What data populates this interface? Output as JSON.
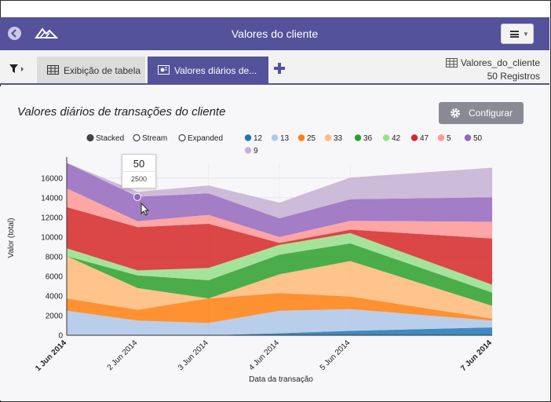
{
  "header": {
    "title": "Valores do cliente",
    "icons": [
      "back-arrow-icon",
      "mountain-logo-icon",
      "hamburger-menu-icon"
    ]
  },
  "tabs": [
    {
      "label": "Exibição de tabela",
      "icon": "table-icon",
      "active": false
    },
    {
      "label": "Valores diários de...",
      "icon": "chart-icon",
      "active": true
    }
  ],
  "source": {
    "name": "Valores_do_cliente",
    "records": "50 Registros"
  },
  "chart_title": "Valores diários de transações do cliente",
  "configure_label": "Configurar",
  "modes": [
    {
      "label": "Stacked",
      "selected": true
    },
    {
      "label": "Stream",
      "selected": false
    },
    {
      "label": "Expanded",
      "selected": false
    }
  ],
  "tooltip": {
    "series": "50",
    "value": "2500"
  },
  "colors": {
    "header": "#53529b",
    "accent": "#53529b"
  },
  "chart_data": {
    "type": "area",
    "stacked": true,
    "xlabel": "Data da transação",
    "ylabel": "Valor (total)",
    "ylim": [
      0,
      17500
    ],
    "yticks": [
      "0",
      "2000",
      "4000",
      "6000",
      "8000",
      "10000",
      "12000",
      "14000",
      "16000"
    ],
    "categories": [
      "1 Jun 2014",
      "2 Jun 2014",
      "3 Jun 2014",
      "4 Jun 2014",
      "5 Jun 2014",
      "7 Jun 2014"
    ],
    "category_emphasis": [
      true,
      false,
      false,
      false,
      false,
      true
    ],
    "x_positions_days": [
      0,
      1,
      2,
      3,
      4,
      6
    ],
    "series": [
      {
        "name": "12",
        "color": "#1f77b4",
        "values": [
          0,
          0,
          0,
          200,
          450,
          800
        ]
      },
      {
        "name": "13",
        "color": "#aec7e8",
        "values": [
          2500,
          1500,
          1250,
          2300,
          2200,
          700
        ]
      },
      {
        "name": "25",
        "color": "#ff7f0e",
        "values": [
          1250,
          1100,
          2500,
          1800,
          1300,
          200
        ]
      },
      {
        "name": "33",
        "color": "#ffbb78",
        "values": [
          4300,
          2200,
          0,
          1900,
          3600,
          1300
        ]
      },
      {
        "name": "36",
        "color": "#2ca02c",
        "values": [
          0,
          1300,
          1850,
          2000,
          1800,
          1350
        ]
      },
      {
        "name": "42",
        "color": "#98df8a",
        "values": [
          800,
          500,
          1250,
          1000,
          1050,
          800
        ]
      },
      {
        "name": "47",
        "color": "#d62728",
        "values": [
          4200,
          4400,
          4500,
          200,
          350,
          4700
        ]
      },
      {
        "name": "5",
        "color": "#ff9896",
        "values": [
          1900,
          600,
          900,
          600,
          900,
          1700
        ]
      },
      {
        "name": "50",
        "color": "#9467bd",
        "values": [
          2600,
          2500,
          2200,
          1900,
          2200,
          2500
        ]
      },
      {
        "name": "9",
        "color": "#c5b0d5",
        "values": [
          0,
          500,
          800,
          1600,
          2200,
          3000
        ]
      }
    ]
  }
}
